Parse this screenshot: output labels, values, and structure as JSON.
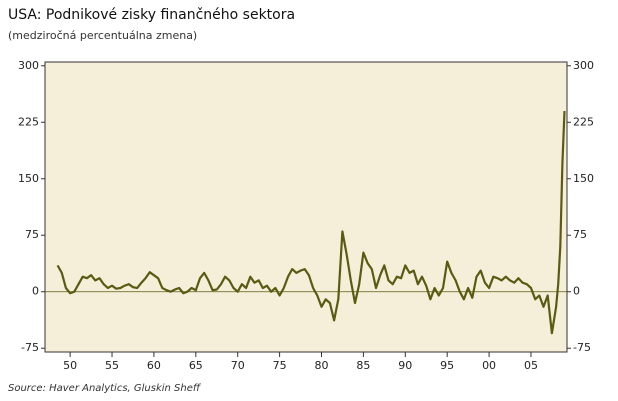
{
  "chart_data": {
    "type": "line",
    "title": "USA: Podnikové zisky finančného sektora",
    "subtitle": "(medziročná percentuálna zmena)",
    "source": "Source: Haver Analytics, Gluskin Sheff",
    "color": "#5b5a12",
    "x": [
      1948.5,
      1949,
      1949.5,
      1950,
      1950.5,
      1951,
      1951.5,
      1952,
      1952.5,
      1953,
      1953.5,
      1954,
      1954.5,
      1955,
      1955.5,
      1956,
      1956.5,
      1957,
      1957.5,
      1958,
      1958.5,
      1959,
      1959.5,
      1960,
      1960.5,
      1961,
      1961.5,
      1962,
      1962.5,
      1963,
      1963.5,
      1964,
      1964.5,
      1965,
      1965.5,
      1966,
      1966.5,
      1967,
      1967.5,
      1968,
      1968.5,
      1969,
      1969.5,
      1970,
      1970.5,
      1971,
      1971.5,
      1972,
      1972.5,
      1973,
      1973.5,
      1974,
      1974.5,
      1975,
      1975.5,
      1976,
      1976.5,
      1977,
      1977.5,
      1978,
      1978.5,
      1979,
      1979.5,
      1980,
      1980.5,
      1981,
      1981.5,
      1982,
      1982.5,
      1983,
      1983.5,
      1984,
      1984.5,
      1985,
      1985.5,
      1986,
      1986.5,
      1987,
      1987.5,
      1988,
      1988.5,
      1989,
      1989.5,
      1990,
      1990.5,
      1991,
      1991.5,
      1992,
      1992.5,
      1993,
      1993.5,
      1994,
      1994.5,
      1995,
      1995.5,
      1996,
      1996.5,
      1997,
      1997.5,
      1998,
      1998.5,
      1999,
      1999.5,
      2000,
      2000.5,
      2001,
      2001.5,
      2002,
      2002.5,
      2003,
      2003.5,
      2004,
      2004.5,
      2005,
      2005.5,
      2006,
      2006.5,
      2007,
      2007.5,
      2008,
      2008.25,
      2008.5,
      2008.75,
      2009
    ],
    "values": [
      35,
      25,
      5,
      -2,
      0,
      10,
      20,
      18,
      22,
      15,
      18,
      10,
      5,
      8,
      4,
      5,
      8,
      10,
      6,
      5,
      12,
      18,
      26,
      22,
      18,
      5,
      2,
      0,
      3,
      5,
      -2,
      0,
      5,
      2,
      18,
      25,
      15,
      2,
      3,
      10,
      20,
      15,
      5,
      0,
      10,
      5,
      20,
      12,
      15,
      5,
      8,
      0,
      5,
      -5,
      5,
      20,
      30,
      25,
      28,
      30,
      22,
      5,
      -5,
      -20,
      -10,
      -15,
      -38,
      -10,
      80,
      50,
      15,
      -15,
      10,
      52,
      38,
      30,
      5,
      22,
      35,
      15,
      10,
      20,
      18,
      35,
      25,
      28,
      10,
      20,
      8,
      -10,
      5,
      -5,
      5,
      40,
      25,
      15,
      0,
      -10,
      5,
      -8,
      20,
      28,
      12,
      5,
      20,
      18,
      15,
      20,
      15,
      12,
      18,
      12,
      10,
      5,
      -10,
      -5,
      -20,
      -5,
      -55,
      -20,
      10,
      60,
      170,
      240
    ],
    "xlim": [
      1947,
      2009.3
    ],
    "xticks": [
      {
        "value": 1950,
        "label": "50"
      },
      {
        "value": 1955,
        "label": "55"
      },
      {
        "value": 1960,
        "label": "60"
      },
      {
        "value": 1965,
        "label": "65"
      },
      {
        "value": 1970,
        "label": "70"
      },
      {
        "value": 1975,
        "label": "75"
      },
      {
        "value": 1980,
        "label": "80"
      },
      {
        "value": 1985,
        "label": "85"
      },
      {
        "value": 1990,
        "label": "90"
      },
      {
        "value": 1995,
        "label": "95"
      },
      {
        "value": 2000,
        "label": "00"
      },
      {
        "value": 2005,
        "label": "05"
      }
    ],
    "ylim": [
      -80,
      305
    ],
    "yticks": [
      300,
      225,
      150,
      75,
      0,
      -75
    ]
  }
}
